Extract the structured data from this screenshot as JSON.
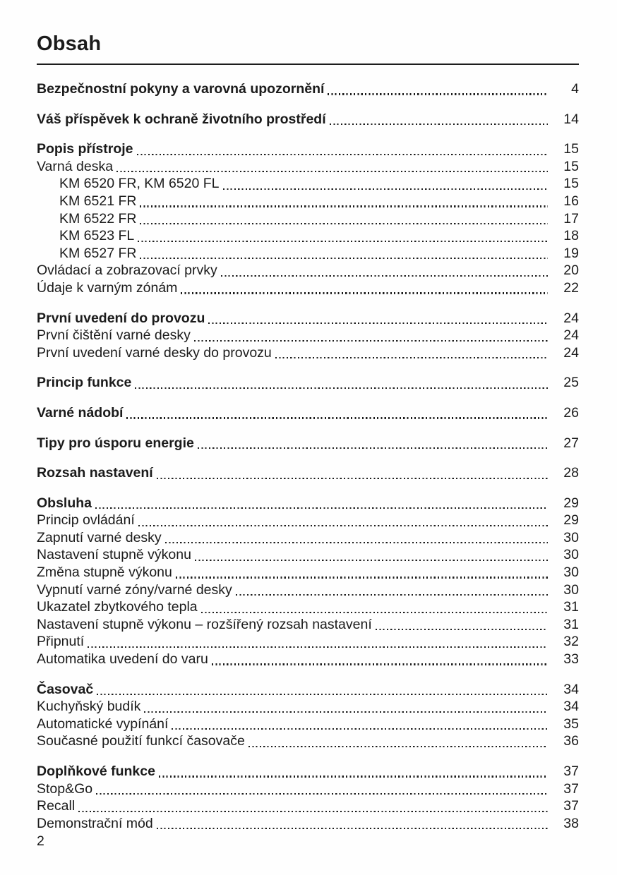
{
  "page": {
    "title": "Obsah",
    "page_number": "2"
  },
  "toc": {
    "entries": [
      {
        "label": "Bezpečnostní pokyny a varovná upozornění",
        "page": "4",
        "bold": true,
        "indent": 0,
        "gap": false
      },
      {
        "label": "Váš příspěvek k ochraně životního prostředí",
        "page": "14",
        "bold": true,
        "indent": 0,
        "gap": true
      },
      {
        "label": "Popis přístroje",
        "page": "15",
        "bold": true,
        "indent": 0,
        "gap": true
      },
      {
        "label": "Varná deska",
        "page": "15",
        "bold": false,
        "indent": 0,
        "gap": false
      },
      {
        "label": "KM 6520 FR, KM 6520 FL",
        "page": "15",
        "bold": false,
        "indent": 1,
        "gap": false
      },
      {
        "label": "KM 6521 FR",
        "page": "16",
        "bold": false,
        "indent": 1,
        "gap": false
      },
      {
        "label": "KM 6522 FR",
        "page": "17",
        "bold": false,
        "indent": 1,
        "gap": false
      },
      {
        "label": "KM 6523 FL",
        "page": "18",
        "bold": false,
        "indent": 1,
        "gap": false
      },
      {
        "label": "KM 6527 FR",
        "page": "19",
        "bold": false,
        "indent": 1,
        "gap": false
      },
      {
        "label": "Ovládací a zobrazovací prvky",
        "page": "20",
        "bold": false,
        "indent": 0,
        "gap": false
      },
      {
        "label": "Údaje k varným zónám",
        "page": "22",
        "bold": false,
        "indent": 0,
        "gap": false
      },
      {
        "label": "První uvedení do provozu",
        "page": "24",
        "bold": true,
        "indent": 0,
        "gap": true
      },
      {
        "label": "První čištění varné desky",
        "page": "24",
        "bold": false,
        "indent": 0,
        "gap": false
      },
      {
        "label": "První uvedení varné desky do provozu",
        "page": "24",
        "bold": false,
        "indent": 0,
        "gap": false
      },
      {
        "label": "Princip funkce",
        "page": "25",
        "bold": true,
        "indent": 0,
        "gap": true
      },
      {
        "label": "Varné nádobí",
        "page": "26",
        "bold": true,
        "indent": 0,
        "gap": true
      },
      {
        "label": "Tipy pro úsporu energie",
        "page": "27",
        "bold": true,
        "indent": 0,
        "gap": true
      },
      {
        "label": "Rozsah nastavení",
        "page": "28",
        "bold": true,
        "indent": 0,
        "gap": true
      },
      {
        "label": "Obsluha",
        "page": "29",
        "bold": true,
        "indent": 0,
        "gap": true
      },
      {
        "label": "Princip ovládání",
        "page": "29",
        "bold": false,
        "indent": 0,
        "gap": false
      },
      {
        "label": "Zapnutí varné desky",
        "page": "30",
        "bold": false,
        "indent": 0,
        "gap": false
      },
      {
        "label": "Nastavení stupně výkonu",
        "page": "30",
        "bold": false,
        "indent": 0,
        "gap": false
      },
      {
        "label": "Změna stupně výkonu",
        "page": "30",
        "bold": false,
        "indent": 0,
        "gap": false
      },
      {
        "label": "Vypnutí varné zóny/varné desky",
        "page": "30",
        "bold": false,
        "indent": 0,
        "gap": false
      },
      {
        "label": "Ukazatel zbytkového tepla",
        "page": "31",
        "bold": false,
        "indent": 0,
        "gap": false
      },
      {
        "label": "Nastavení stupně výkonu – rozšířený rozsah nastavení",
        "page": "31",
        "bold": false,
        "indent": 0,
        "gap": false
      },
      {
        "label": "Připnutí",
        "page": "32",
        "bold": false,
        "indent": 0,
        "gap": false
      },
      {
        "label": "Automatika uvedení do varu",
        "page": "33",
        "bold": false,
        "indent": 0,
        "gap": false
      },
      {
        "label": "Časovač",
        "page": "34",
        "bold": true,
        "indent": 0,
        "gap": true
      },
      {
        "label": "Kuchyňský budík",
        "page": "34",
        "bold": false,
        "indent": 0,
        "gap": false
      },
      {
        "label": "Automatické vypínání",
        "page": "35",
        "bold": false,
        "indent": 0,
        "gap": false
      },
      {
        "label": "Současné použití funkcí časovače",
        "page": "36",
        "bold": false,
        "indent": 0,
        "gap": false
      },
      {
        "label": "Doplňkové funkce",
        "page": "37",
        "bold": true,
        "indent": 0,
        "gap": true
      },
      {
        "label": "Stop&Go",
        "page": "37",
        "bold": false,
        "indent": 0,
        "gap": false
      },
      {
        "label": "Recall",
        "page": "37",
        "bold": false,
        "indent": 0,
        "gap": false
      },
      {
        "label": "Demonstrační mód",
        "page": "38",
        "bold": false,
        "indent": 0,
        "gap": false
      }
    ]
  }
}
